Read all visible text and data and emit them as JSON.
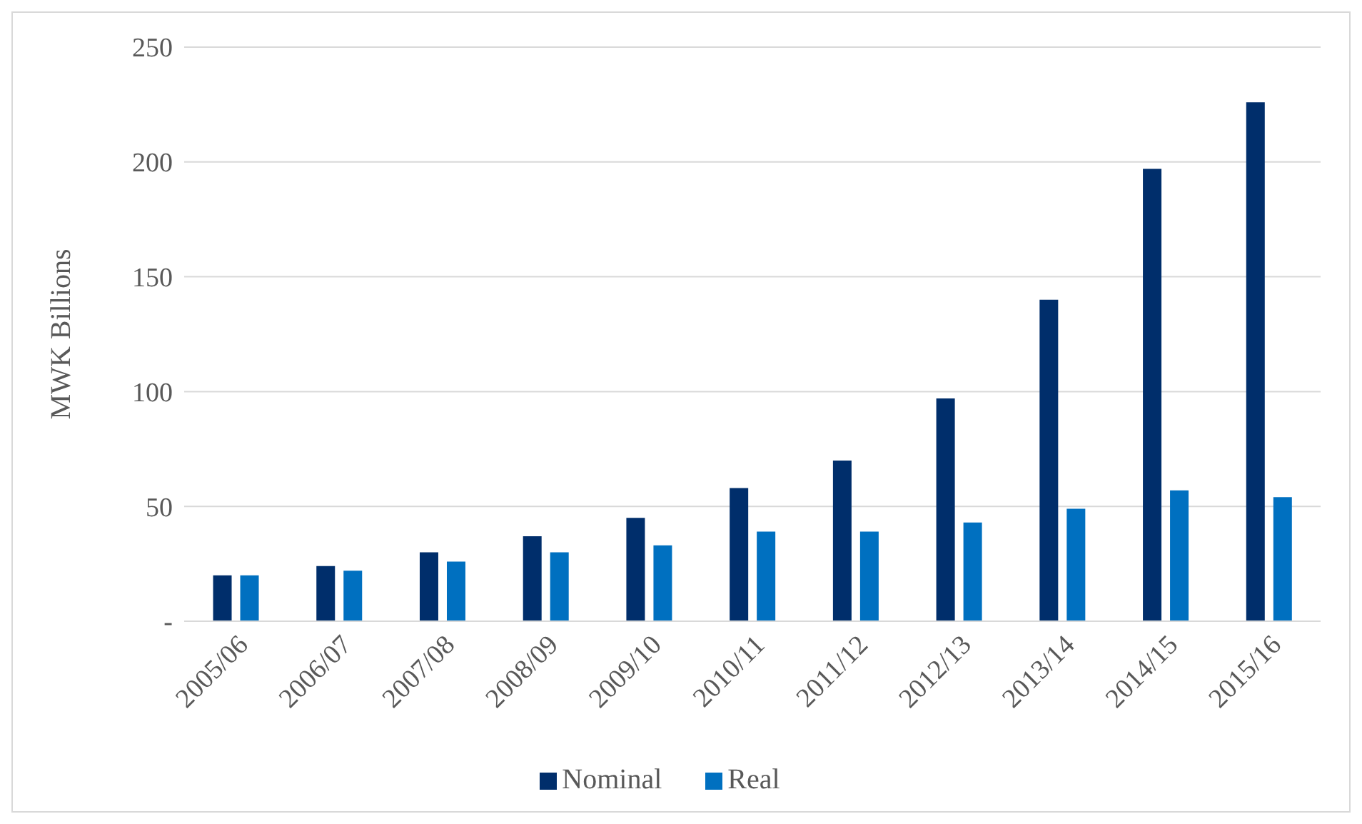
{
  "chart_data": {
    "type": "bar",
    "ylabel": "MWK Billions",
    "categories": [
      "2005/06",
      "2006/07",
      "2007/08",
      "2008/09",
      "2009/10",
      "2010/11",
      "2011/12",
      "2012/13",
      "2013/14",
      "2014/15",
      "2015/16"
    ],
    "series": [
      {
        "name": "Nominal",
        "color": "#002e6b",
        "values": [
          20,
          24,
          30,
          37,
          45,
          58,
          70,
          97,
          140,
          197,
          226
        ]
      },
      {
        "name": "Real",
        "color": "#0070c0",
        "values": [
          20,
          22,
          26,
          30,
          33,
          39,
          39,
          43,
          49,
          57,
          54
        ]
      }
    ],
    "ylim": [
      0,
      250
    ],
    "yticks": [
      {
        "value": 0,
        "label": "-"
      },
      50,
      100,
      150,
      200,
      250
    ],
    "grid": "y",
    "legend": "bottom"
  }
}
